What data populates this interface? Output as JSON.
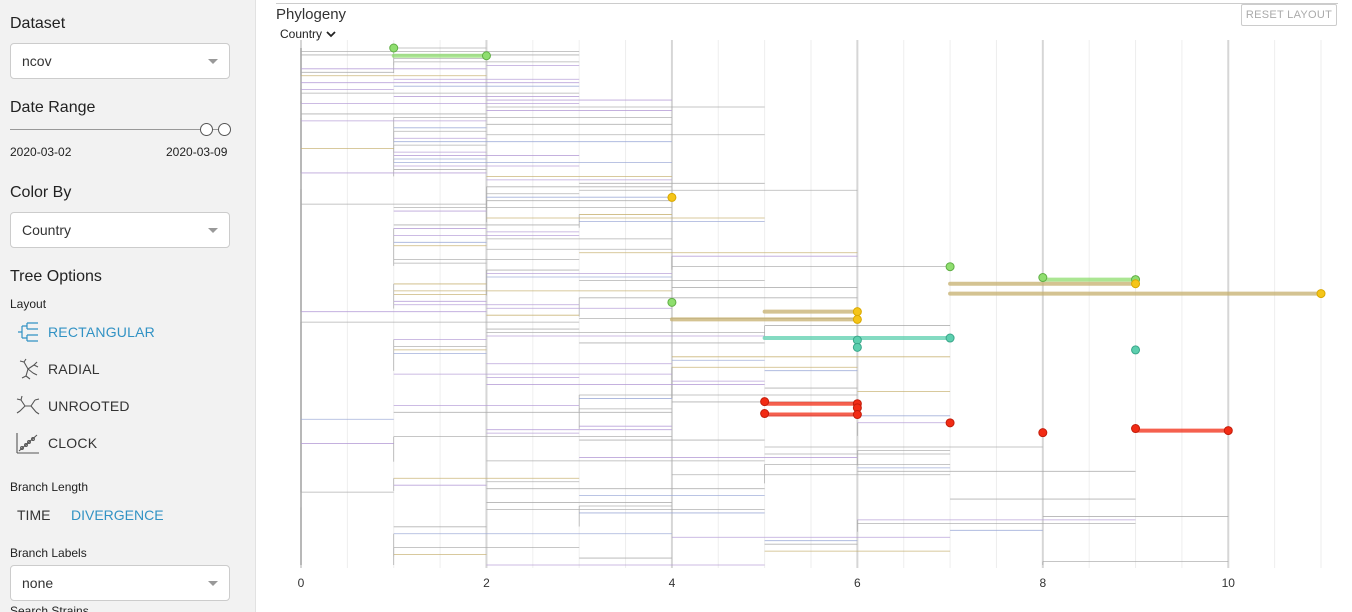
{
  "sidebar": {
    "dataset": {
      "title": "Dataset",
      "value": "ncov"
    },
    "date_range": {
      "title": "Date Range",
      "start": "2020-03-02",
      "end": "2020-03-09"
    },
    "color_by": {
      "title": "Color By",
      "value": "Country"
    },
    "tree_options": {
      "title": "Tree Options",
      "layout_label": "Layout",
      "layouts": [
        {
          "label": "RECTANGULAR",
          "icon": "rectangular-layout-icon",
          "selected": true
        },
        {
          "label": "RADIAL",
          "icon": "radial-layout-icon",
          "selected": false
        },
        {
          "label": "UNROOTED",
          "icon": "unrooted-layout-icon",
          "selected": false
        },
        {
          "label": "CLOCK",
          "icon": "clock-layout-icon",
          "selected": false
        }
      ],
      "branch_length_label": "Branch Length",
      "branch_length_options": [
        "TIME",
        "DIVERGENCE"
      ],
      "branch_length_selected": "DIVERGENCE",
      "branch_labels_label": "Branch Labels",
      "branch_labels_value": "none",
      "search_label": "Search Strains"
    }
  },
  "panel": {
    "title": "Phylogeny",
    "reset_label": "RESET LAYOUT",
    "color_selector": "Country"
  },
  "colors": {
    "accent": "#3192c4",
    "green": "#8fde6f",
    "yellow": "#f5c518",
    "teal": "#5ccfae",
    "red": "#f22b14",
    "olive": "#c6b06e",
    "purple": "#b49bd6",
    "grey": "#aaaaaa"
  },
  "chart_data": {
    "type": "tree",
    "x_ticks": [
      "0",
      "2",
      "4",
      "6",
      "8",
      "10"
    ],
    "xlim": [
      0,
      11
    ],
    "grid": true,
    "highlighted_tips": [
      {
        "color": "green",
        "x": 1,
        "y_frac": 0.0
      },
      {
        "color": "green",
        "x": 2,
        "y_frac": 0.015
      },
      {
        "color": "yellow",
        "x": 4,
        "y_frac": 0.289
      },
      {
        "color": "green",
        "x": 7,
        "y_frac": 0.423
      },
      {
        "color": "green",
        "x": 8,
        "y_frac": 0.444
      },
      {
        "color": "green",
        "x": 9,
        "y_frac": 0.448
      },
      {
        "color": "yellow",
        "x": 9,
        "y_frac": 0.456
      },
      {
        "color": "yellow",
        "x": 11,
        "y_frac": 0.475
      },
      {
        "color": "green",
        "x": 4,
        "y_frac": 0.492
      },
      {
        "color": "yellow",
        "x": 6,
        "y_frac": 0.51
      },
      {
        "color": "yellow",
        "x": 6,
        "y_frac": 0.525
      },
      {
        "color": "teal",
        "x": 7,
        "y_frac": 0.561
      },
      {
        "color": "teal",
        "x": 6,
        "y_frac": 0.565
      },
      {
        "color": "teal",
        "x": 6,
        "y_frac": 0.579
      },
      {
        "color": "teal",
        "x": 9,
        "y_frac": 0.584
      },
      {
        "color": "red",
        "x": 5,
        "y_frac": 0.684
      },
      {
        "color": "red",
        "x": 6,
        "y_frac": 0.688
      },
      {
        "color": "red",
        "x": 6,
        "y_frac": 0.696
      },
      {
        "color": "red",
        "x": 5,
        "y_frac": 0.707
      },
      {
        "color": "red",
        "x": 6,
        "y_frac": 0.709
      },
      {
        "color": "red",
        "x": 7,
        "y_frac": 0.725
      },
      {
        "color": "red",
        "x": 8,
        "y_frac": 0.744
      },
      {
        "color": "red",
        "x": 9,
        "y_frac": 0.736
      },
      {
        "color": "red",
        "x": 10,
        "y_frac": 0.74
      }
    ],
    "thick_branches": [
      {
        "color": "green",
        "x0": 1,
        "x1": 2,
        "y_frac": 0.015
      },
      {
        "color": "green",
        "x0": 8,
        "x1": 9,
        "y_frac": 0.448
      },
      {
        "color": "olive",
        "x0": 7,
        "x1": 9,
        "y_frac": 0.456
      },
      {
        "color": "olive",
        "x0": 7,
        "x1": 11,
        "y_frac": 0.475
      },
      {
        "color": "olive",
        "x0": 5,
        "x1": 6,
        "y_frac": 0.51
      },
      {
        "color": "olive",
        "x0": 4,
        "x1": 6,
        "y_frac": 0.525
      },
      {
        "color": "teal",
        "x0": 5,
        "x1": 7,
        "y_frac": 0.561
      },
      {
        "color": "red",
        "x0": 5,
        "x1": 6,
        "y_frac": 0.688
      },
      {
        "color": "red",
        "x0": 5,
        "x1": 6,
        "y_frac": 0.709
      },
      {
        "color": "red",
        "x0": 9,
        "x1": 10,
        "y_frac": 0.74
      }
    ]
  }
}
